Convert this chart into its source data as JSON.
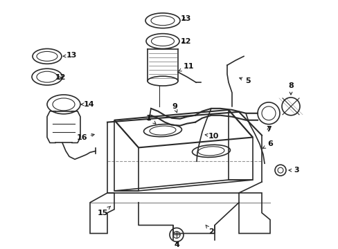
{
  "bg_color": "#ffffff",
  "line_color": "#2a2a2a",
  "text_color": "#111111",
  "figsize": [
    4.89,
    3.6
  ],
  "dpi": 100,
  "label_fontsize": 8.0,
  "lw_main": 1.2,
  "lw_thin": 0.8,
  "lw_thick": 1.5
}
